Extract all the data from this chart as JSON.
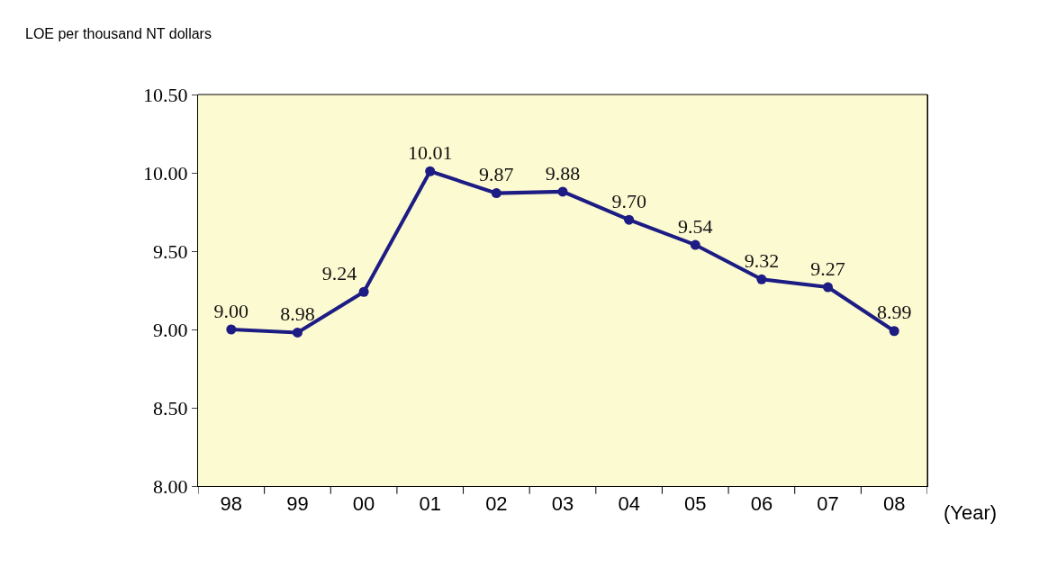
{
  "chart_data": {
    "type": "line",
    "ylabel": "LOE per thousand NT dollars",
    "xlabel": "(Year)",
    "categories": [
      "98",
      "99",
      "00",
      "01",
      "02",
      "03",
      "04",
      "05",
      "06",
      "07",
      "08"
    ],
    "series": [
      {
        "color": "#1c1c84",
        "values": [
          9.0,
          8.98,
          9.24,
          10.01,
          9.87,
          9.88,
          9.7,
          9.54,
          9.32,
          9.27,
          8.99
        ],
        "value_labels": [
          "9.00",
          "8.98",
          "9.24",
          "10.01",
          "9.87",
          "9.88",
          "9.70",
          "9.54",
          "9.32",
          "9.27",
          "8.99"
        ]
      }
    ],
    "ylim": [
      8.0,
      10.5
    ],
    "yticks": [
      {
        "value": 8.0,
        "label": "8.00"
      },
      {
        "value": 8.5,
        "label": "8.50"
      },
      {
        "value": 9.0,
        "label": "9.00"
      },
      {
        "value": 9.5,
        "label": "9.50"
      },
      {
        "value": 10.0,
        "label": "10.00"
      },
      {
        "value": 10.5,
        "label": "10.50"
      }
    ],
    "grid": false,
    "legend": false,
    "marker": "circle",
    "line_style": "solid"
  }
}
